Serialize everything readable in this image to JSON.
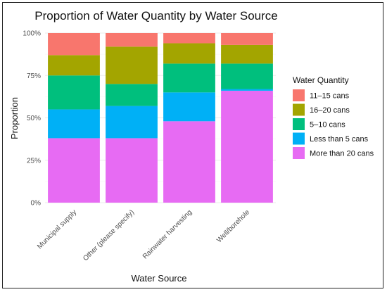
{
  "chart_data": {
    "type": "bar",
    "stacked": true,
    "title": "Proportion of Water Quantity by Water Source",
    "xlabel": "Water Source",
    "ylabel": "Proportion",
    "ylim": [
      0,
      1
    ],
    "yticks": [
      0,
      0.25,
      0.5,
      0.75,
      1.0
    ],
    "ytick_labels": [
      "0%",
      "25%",
      "50%",
      "75%",
      "100%"
    ],
    "grid": true,
    "legend_position": "right",
    "legend_title": "Water Quantity",
    "categories": [
      "Municipal supply",
      "Other (please specify)",
      "Rainwater harvesting",
      "Well/borehole"
    ],
    "series": [
      {
        "name": "More than 20 cans",
        "color": "#E76BF3",
        "values": [
          0.38,
          0.38,
          0.48,
          0.66
        ]
      },
      {
        "name": "Less than 5 cans",
        "color": "#00B0F6",
        "values": [
          0.17,
          0.19,
          0.17,
          0.01
        ]
      },
      {
        "name": "5–10 cans",
        "color": "#00BF7D",
        "values": [
          0.2,
          0.13,
          0.17,
          0.15
        ]
      },
      {
        "name": "16–20 cans",
        "color": "#A3A500",
        "values": [
          0.12,
          0.22,
          0.12,
          0.11
        ]
      },
      {
        "name": "11–15 cans",
        "color": "#F8766D",
        "values": [
          0.13,
          0.08,
          0.06,
          0.07
        ]
      }
    ],
    "legend_order": [
      "11–15 cans",
      "16–20 cans",
      "5–10 cans",
      "Less than 5 cans",
      "More than 20 cans"
    ]
  }
}
